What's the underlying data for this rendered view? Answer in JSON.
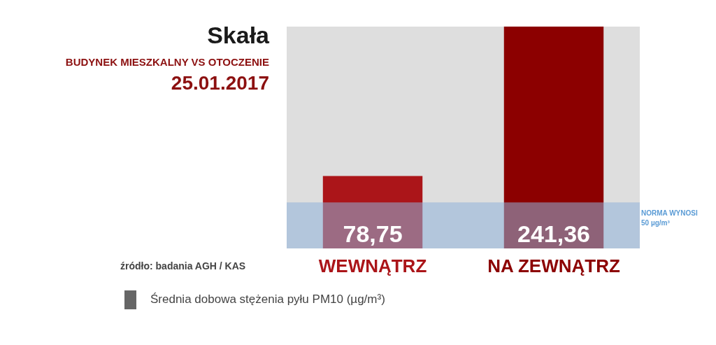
{
  "chart_data": {
    "type": "bar",
    "title": "Skała",
    "subtitle": "BUDYNEK MIESZKALNY VS OTOCZENIE",
    "categories": [
      "WEWNĄTRZ",
      "NA ZEWNĄTRZ"
    ],
    "values": [
      78.75,
      241.36
    ],
    "colors": [
      "#ab1519",
      "#8c0000"
    ],
    "value_labels": [
      "78,75",
      "241,36"
    ],
    "annotations": [
      "25.01.2017",
      "źródło: badania AGH / KAS",
      "Średnia dobowa stężenia pyłu PM10 (µg/m³)"
    ],
    "bands": [
      {
        "axis": "y",
        "from": 0,
        "to": 50,
        "label": "NORMA WYNOSI 50 µg/m³",
        "color": "#8fb3da"
      }
    ],
    "grid": false
  }
}
